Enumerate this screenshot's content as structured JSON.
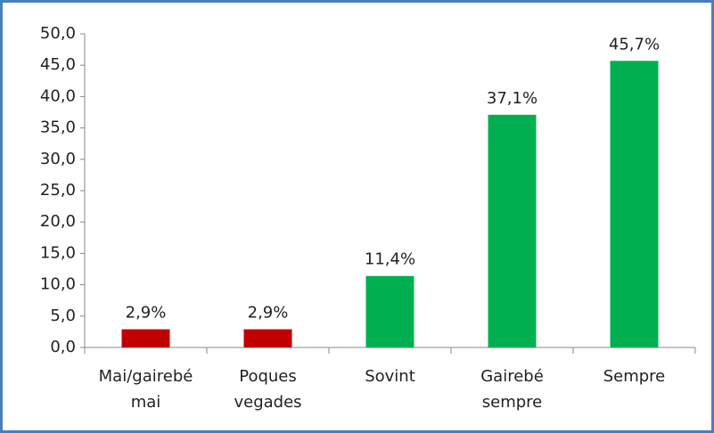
{
  "chart_data": {
    "type": "bar",
    "categories": [
      "Mai/gairebé mai",
      "Poques vegades",
      "Sovint",
      "Gairebé sempre",
      "Sempre"
    ],
    "values": [
      2.9,
      2.9,
      11.4,
      37.1,
      45.7
    ],
    "value_labels": [
      "2,9%",
      "2,9%",
      "11,4%",
      "37,1%",
      "45,7%"
    ],
    "colors": [
      "#c00000",
      "#c00000",
      "#00b050",
      "#00b050",
      "#00b050"
    ],
    "ylim": [
      0,
      50
    ],
    "yticks": [
      {
        "value": 0,
        "label": "0,0"
      },
      {
        "value": 5,
        "label": "5,0"
      },
      {
        "value": 10,
        "label": "10,0"
      },
      {
        "value": 15,
        "label": "15,0"
      },
      {
        "value": 20,
        "label": "20,0"
      },
      {
        "value": 25,
        "label": "25,0"
      },
      {
        "value": 30,
        "label": "30,0"
      },
      {
        "value": 35,
        "label": "35,0"
      },
      {
        "value": 40,
        "label": "40,0"
      },
      {
        "value": 45,
        "label": "45,0"
      },
      {
        "value": 50,
        "label": "50,0"
      }
    ],
    "grid": false
  }
}
